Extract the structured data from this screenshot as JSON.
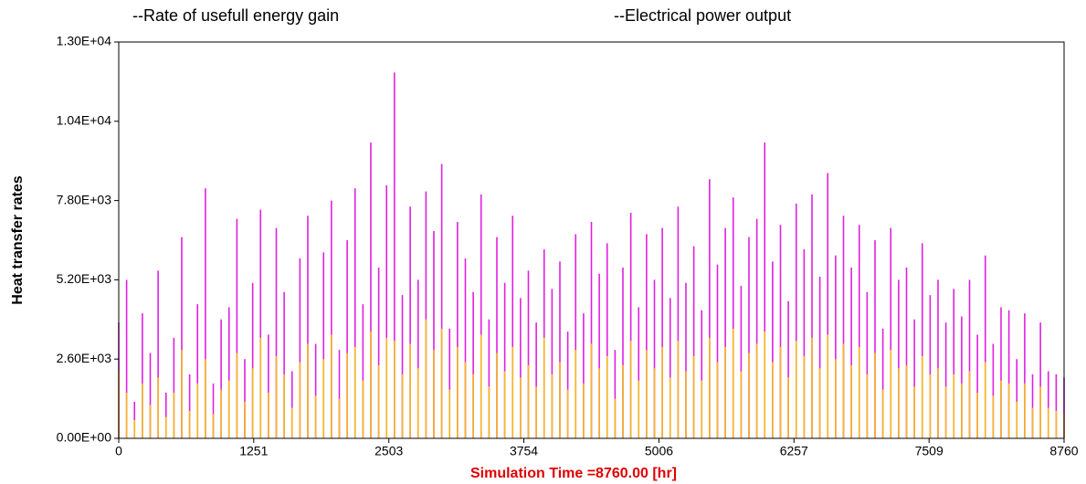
{
  "chart_data": {
    "type": "stem",
    "xlabel": "Simulation Time =8760.00 [hr]",
    "ylabel": "Heat transfer rates",
    "xlim": [
      0,
      8760
    ],
    "ylim": [
      0,
      13000
    ],
    "xticks": [
      0,
      1251,
      2503,
      3754,
      5006,
      6257,
      7509,
      8760
    ],
    "yticks": [
      {
        "value": 0,
        "label": "0.00E+00"
      },
      {
        "value": 2600,
        "label": "2.60E+03"
      },
      {
        "value": 5200,
        "label": "5.20E+03"
      },
      {
        "value": 7800,
        "label": "7.80E+03"
      },
      {
        "value": 10400,
        "label": "1.04E+04"
      },
      {
        "value": 13000,
        "label": "1.30E+04"
      }
    ],
    "x": [
      0,
      73,
      146,
      219,
      292,
      365,
      438,
      511,
      584,
      657,
      730,
      803,
      876,
      949,
      1022,
      1095,
      1168,
      1241,
      1314,
      1387,
      1460,
      1533,
      1606,
      1679,
      1752,
      1825,
      1898,
      1971,
      2044,
      2117,
      2190,
      2263,
      2336,
      2409,
      2482,
      2555,
      2628,
      2701,
      2774,
      2847,
      2920,
      2993,
      3066,
      3139,
      3212,
      3285,
      3358,
      3431,
      3504,
      3577,
      3650,
      3723,
      3796,
      3869,
      3942,
      4015,
      4088,
      4161,
      4234,
      4307,
      4380,
      4453,
      4526,
      4599,
      4672,
      4745,
      4818,
      4891,
      4964,
      5037,
      5110,
      5183,
      5256,
      5329,
      5402,
      5475,
      5548,
      5621,
      5694,
      5767,
      5840,
      5913,
      5986,
      6059,
      6132,
      6205,
      6278,
      6351,
      6424,
      6497,
      6570,
      6643,
      6716,
      6789,
      6862,
      6935,
      7008,
      7081,
      7154,
      7227,
      7300,
      7373,
      7446,
      7519,
      7592,
      7665,
      7738,
      7811,
      7884,
      7957,
      8030,
      8103,
      8176,
      8249,
      8322,
      8395,
      8468,
      8541,
      8614,
      8687,
      8760
    ],
    "series": [
      {
        "name": "--Rate of usefull energy gain",
        "color": "#e020e0",
        "values": [
          3800,
          5200,
          1200,
          4100,
          2800,
          5500,
          1500,
          3300,
          6600,
          2100,
          4400,
          8200,
          1800,
          3900,
          4300,
          7200,
          2600,
          5100,
          7500,
          3400,
          6900,
          4800,
          2200,
          5900,
          7300,
          3100,
          6100,
          7800,
          2900,
          6500,
          8200,
          4400,
          9700,
          5600,
          8300,
          12000,
          4700,
          7600,
          5200,
          8100,
          6800,
          9000,
          3600,
          7100,
          5900,
          4800,
          8000,
          3900,
          6600,
          5100,
          7300,
          4600,
          5500,
          3800,
          6200,
          4900,
          5800,
          3500,
          6700,
          4100,
          7100,
          5400,
          6400,
          2900,
          5600,
          7400,
          4300,
          6700,
          5200,
          6900,
          4600,
          7600,
          5100,
          6300,
          4200,
          8500,
          5700,
          6900,
          7900,
          5000,
          6600,
          7200,
          9700,
          5800,
          7000,
          4500,
          7700,
          6200,
          8000,
          5300,
          8700,
          6000,
          7300,
          5600,
          7000,
          4800,
          6500,
          3600,
          6900,
          5200,
          5600,
          3900,
          6400,
          4700,
          5200,
          3800,
          4900,
          4000,
          5200,
          3400,
          6000,
          3100,
          4300,
          4200,
          2600,
          4100,
          2100,
          3800,
          2200,
          2100,
          2000
        ]
      },
      {
        "name": "--Electrical power output",
        "color": "#f5b820",
        "values": [
          2200,
          1500,
          600,
          1800,
          1100,
          2000,
          700,
          1500,
          2900,
          900,
          1800,
          2600,
          800,
          1600,
          1900,
          2800,
          1200,
          2300,
          3300,
          1500,
          2700,
          2100,
          1000,
          2500,
          3100,
          1400,
          2600,
          3400,
          1300,
          2800,
          3000,
          1900,
          3500,
          2400,
          3300,
          3200,
          2100,
          3100,
          2300,
          3900,
          2900,
          3600,
          1600,
          3000,
          2500,
          2100,
          3400,
          1700,
          2800,
          2200,
          3000,
          2000,
          2400,
          1700,
          3300,
          2100,
          2500,
          1600,
          2900,
          1800,
          3100,
          2300,
          2700,
          1300,
          2400,
          3200,
          1900,
          2900,
          2300,
          3000,
          2000,
          3200,
          2200,
          2700,
          1900,
          3300,
          2500,
          3000,
          3600,
          2200,
          2800,
          3100,
          3500,
          2500,
          3000,
          2000,
          3200,
          2700,
          3300,
          2300,
          3400,
          2600,
          3100,
          2400,
          3000,
          2100,
          2800,
          1600,
          2900,
          2300,
          2400,
          1700,
          2700,
          2100,
          2300,
          1700,
          2100,
          1800,
          2200,
          1500,
          2500,
          1400,
          1900,
          1800,
          1200,
          1800,
          1000,
          1700,
          1000,
          900,
          800
        ]
      }
    ]
  }
}
